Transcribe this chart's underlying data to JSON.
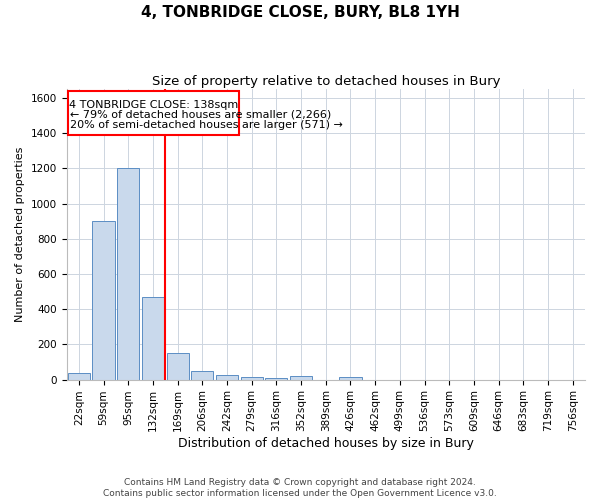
{
  "title": "4, TONBRIDGE CLOSE, BURY, BL8 1YH",
  "subtitle": "Size of property relative to detached houses in Bury",
  "xlabel": "Distribution of detached houses by size in Bury",
  "ylabel": "Number of detached properties",
  "categories": [
    "22sqm",
    "59sqm",
    "95sqm",
    "132sqm",
    "169sqm",
    "206sqm",
    "242sqm",
    "279sqm",
    "316sqm",
    "352sqm",
    "389sqm",
    "426sqm",
    "462sqm",
    "499sqm",
    "536sqm",
    "573sqm",
    "609sqm",
    "646sqm",
    "683sqm",
    "719sqm",
    "756sqm"
  ],
  "values": [
    40,
    900,
    1200,
    470,
    150,
    50,
    25,
    15,
    10,
    20,
    0,
    15,
    0,
    0,
    0,
    0,
    0,
    0,
    0,
    0,
    0
  ],
  "bar_color": "#c9d9ec",
  "bar_edge_color": "#5b8ec4",
  "annotation_line1": "4 TONBRIDGE CLOSE: 138sqm",
  "annotation_line2": "← 79% of detached houses are smaller (2,266)",
  "annotation_line3": "20% of semi-detached houses are larger (571) →",
  "ylim": [
    0,
    1650
  ],
  "yticks": [
    0,
    200,
    400,
    600,
    800,
    1000,
    1200,
    1400,
    1600
  ],
  "grid_color": "#cdd5e0",
  "footer1": "Contains HM Land Registry data © Crown copyright and database right 2024.",
  "footer2": "Contains public sector information licensed under the Open Government Licence v3.0.",
  "title_fontsize": 11,
  "subtitle_fontsize": 9.5,
  "xlabel_fontsize": 9,
  "ylabel_fontsize": 8,
  "tick_fontsize": 7.5,
  "footer_fontsize": 6.5,
  "annotation_fontsize": 8,
  "bg_color": "#ffffff"
}
